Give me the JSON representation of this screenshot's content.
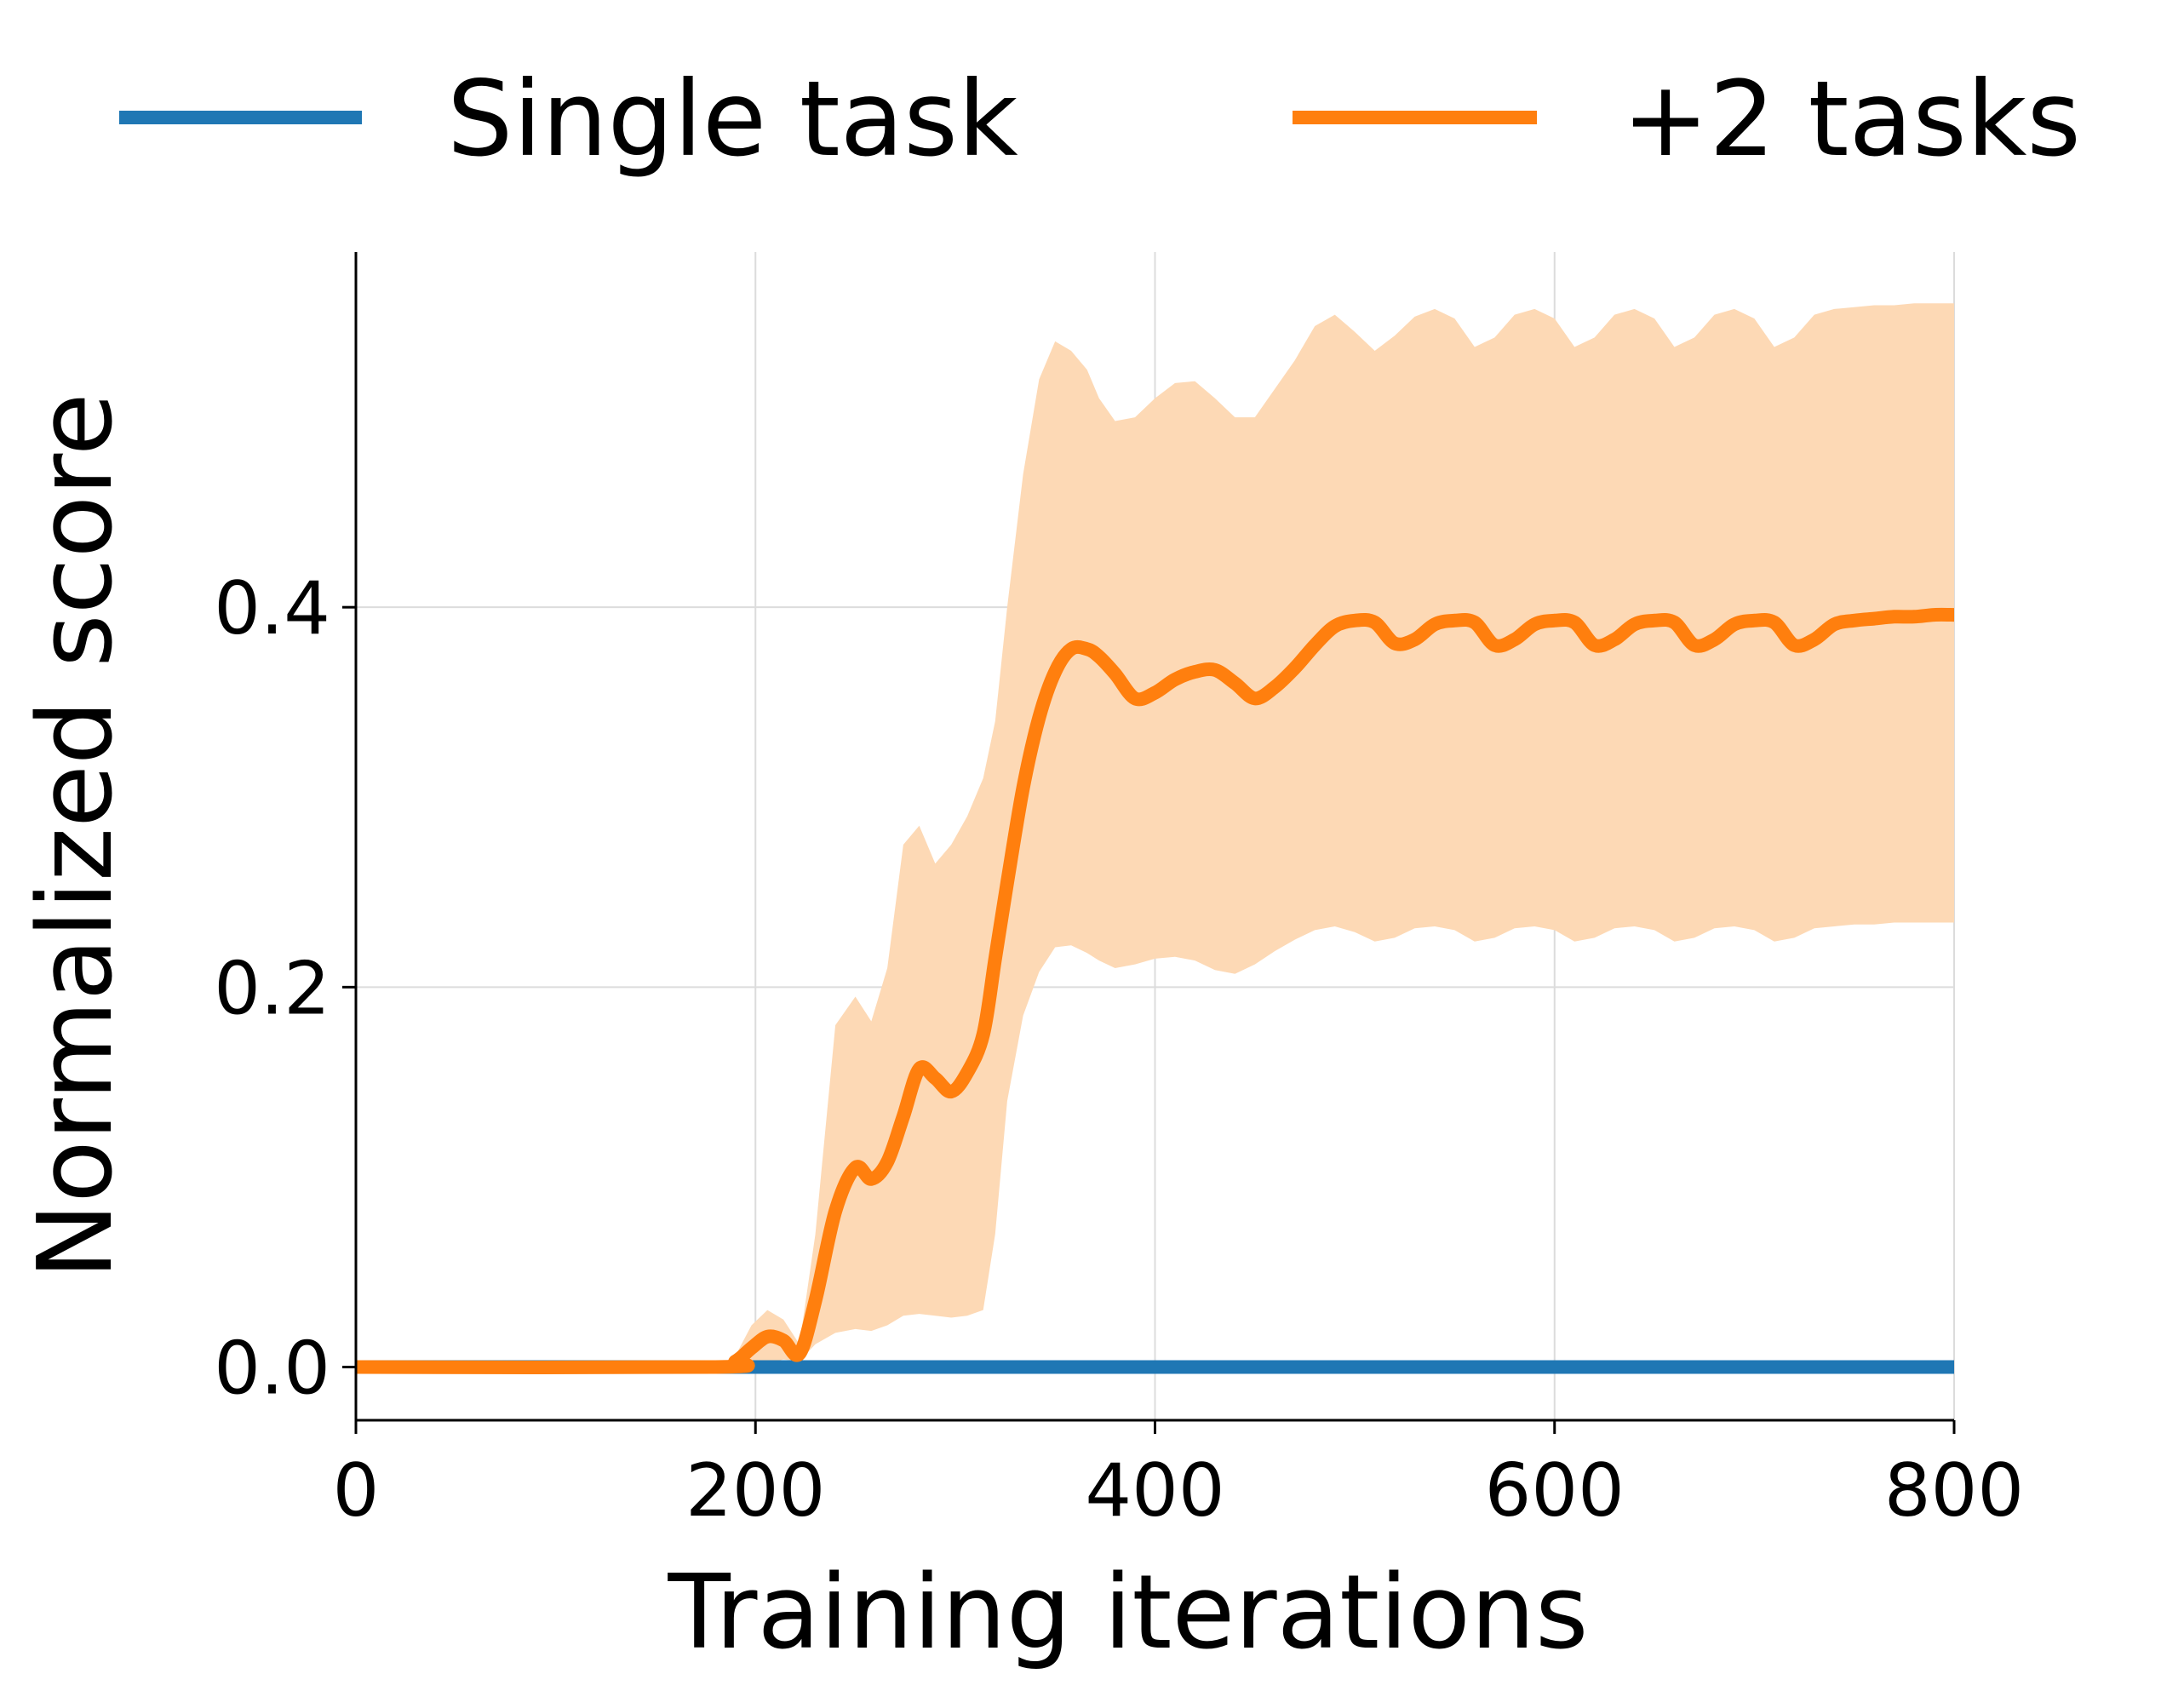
{
  "chart_data": {
    "type": "line",
    "xlabel": "Training iterations",
    "ylabel": "Normalized score",
    "xlim": [
      0,
      800
    ],
    "ylim": [
      -0.028,
      0.587
    ],
    "xticks": [
      0,
      200,
      400,
      600,
      800
    ],
    "yticks": [
      0.0,
      0.2,
      0.4
    ],
    "xtick_labels": [
      "0",
      "200",
      "400",
      "600",
      "800"
    ],
    "ytick_labels": [
      "0.0",
      "0.2",
      "0.4"
    ],
    "grid": true,
    "legend_position": "top",
    "series": [
      {
        "name": "Single task",
        "color": "#1f77b4",
        "x": [
          0,
          800
        ],
        "y": [
          0.0,
          0.0
        ]
      },
      {
        "name": "+2 tasks",
        "color": "#ff7f0e",
        "band_color": "#fdd9b5",
        "x": [
          0,
          180,
          190,
          198,
          206,
          214,
          222,
          230,
          240,
          250,
          258,
          266,
          274,
          282,
          290,
          298,
          306,
          314,
          320,
          326,
          334,
          342,
          350,
          358,
          366,
          372,
          380,
          390,
          400,
          410,
          420,
          430,
          440,
          450,
          460,
          470,
          480,
          490,
          500,
          510,
          520,
          530,
          540,
          550,
          560,
          570,
          580,
          590,
          600,
          610,
          620,
          630,
          640,
          650,
          660,
          670,
          680,
          690,
          700,
          710,
          720,
          730,
          740,
          750,
          760,
          770,
          780,
          790,
          800
        ],
        "y": [
          0.0,
          0.0,
          0.003,
          0.01,
          0.016,
          0.014,
          0.007,
          0.035,
          0.082,
          0.105,
          0.099,
          0.108,
          0.132,
          0.157,
          0.152,
          0.145,
          0.155,
          0.175,
          0.215,
          0.255,
          0.305,
          0.342,
          0.366,
          0.378,
          0.378,
          0.374,
          0.365,
          0.352,
          0.355,
          0.362,
          0.366,
          0.367,
          0.36,
          0.352,
          0.358,
          0.368,
          0.38,
          0.39,
          0.393,
          0.392,
          0.381,
          0.383,
          0.391,
          0.393,
          0.392,
          0.38,
          0.383,
          0.391,
          0.393,
          0.392,
          0.38,
          0.383,
          0.391,
          0.393,
          0.392,
          0.38,
          0.383,
          0.391,
          0.393,
          0.392,
          0.38,
          0.383,
          0.391,
          0.393,
          0.394,
          0.395,
          0.395,
          0.396,
          0.396
        ],
        "y_upper": [
          0.0,
          0.0,
          0.006,
          0.022,
          0.03,
          0.025,
          0.012,
          0.07,
          0.18,
          0.195,
          0.182,
          0.21,
          0.275,
          0.285,
          0.265,
          0.275,
          0.29,
          0.31,
          0.34,
          0.4,
          0.47,
          0.52,
          0.54,
          0.535,
          0.525,
          0.51,
          0.498,
          0.5,
          0.51,
          0.518,
          0.519,
          0.51,
          0.5,
          0.5,
          0.515,
          0.53,
          0.548,
          0.554,
          0.545,
          0.535,
          0.543,
          0.553,
          0.557,
          0.552,
          0.537,
          0.542,
          0.554,
          0.557,
          0.552,
          0.537,
          0.542,
          0.554,
          0.557,
          0.552,
          0.537,
          0.542,
          0.554,
          0.557,
          0.552,
          0.537,
          0.542,
          0.554,
          0.557,
          0.558,
          0.559,
          0.559,
          0.56,
          0.56,
          0.56
        ],
        "y_lower": [
          0.0,
          0.0,
          0.0,
          0.0,
          0.002,
          0.004,
          0.003,
          0.012,
          0.018,
          0.02,
          0.019,
          0.022,
          0.027,
          0.028,
          0.027,
          0.026,
          0.027,
          0.03,
          0.07,
          0.14,
          0.185,
          0.208,
          0.221,
          0.222,
          0.218,
          0.214,
          0.21,
          0.212,
          0.215,
          0.216,
          0.214,
          0.209,
          0.207,
          0.212,
          0.219,
          0.225,
          0.23,
          0.232,
          0.229,
          0.224,
          0.226,
          0.231,
          0.232,
          0.23,
          0.224,
          0.226,
          0.231,
          0.232,
          0.23,
          0.224,
          0.226,
          0.231,
          0.232,
          0.23,
          0.224,
          0.226,
          0.231,
          0.232,
          0.23,
          0.224,
          0.226,
          0.231,
          0.232,
          0.233,
          0.233,
          0.234,
          0.234,
          0.234,
          0.234
        ]
      }
    ]
  }
}
